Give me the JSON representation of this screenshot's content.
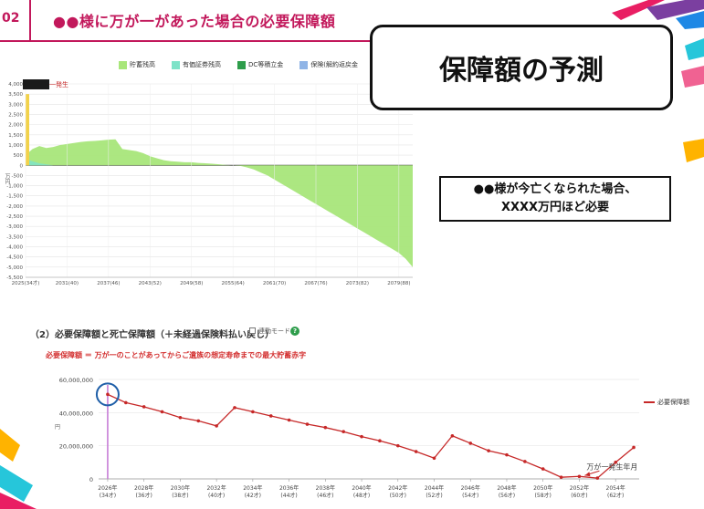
{
  "header": {
    "slide_number": "02",
    "title": "●●様に万が一があった場合の必要保障額"
  },
  "callouts": {
    "prediction": "保障額の予測",
    "conclusion_line1": "●●様が今亡くなられた場合、",
    "conclusion_line2": "XXXX万円ほど必要"
  },
  "colors": {
    "brand": "#c2185b",
    "savings": "#a8e67a",
    "securities": "#7ee3c8",
    "dc": "#2e9d4b",
    "insurance": "#8fb4e6",
    "required_line": "#c62828",
    "highlight_circle": "#1f5fa8"
  },
  "top_chart": {
    "legend": [
      "貯蓄残高",
      "有価証券残高",
      "DC等積立金",
      "保険(解約返戻金"
    ],
    "alert_label": "万が一発生",
    "y_unit": "万円",
    "y_ticks": [
      "4,000",
      "3,500",
      "3,000",
      "2,500",
      "2,000",
      "1,500",
      "1,000",
      "500",
      "0",
      "-500",
      "-1,000",
      "-1,500",
      "-2,000",
      "-2,500",
      "-3,000",
      "-3,500",
      "-4,000",
      "-4,500",
      "-5,000",
      "-5,500"
    ],
    "x_ticks": [
      "2025(34才)",
      "2031(40)",
      "2037(46)",
      "2043(52)",
      "2049(58)",
      "2055(64)",
      "2061(70)",
      "2067(76)",
      "2073(82)",
      "2079(88)"
    ]
  },
  "section": {
    "heading": "（2）必要保障額と死亡保障額（＋未経過保険料払い戻し）",
    "sync_mode": "連動モード",
    "help_icon": "?",
    "definition": "必要保障額 ＝ 万が一のことがあってからご遺族の想定寿命までの最大貯蓄赤字"
  },
  "bottom_chart": {
    "y_unit": "円",
    "legend": "必要保障額",
    "event_label": "万が一発生年月",
    "y_ticks": [
      "60,000,000",
      "40,000,000",
      "20,000,000",
      "0"
    ],
    "x_years": [
      "2026年",
      "2028年",
      "2030年",
      "2032年",
      "2034年",
      "2036年",
      "2038年",
      "2040年",
      "2042年",
      "2044年",
      "2046年",
      "2048年",
      "2050年",
      "2052年",
      "2054年"
    ],
    "x_ages": [
      "(34才)",
      "(36才)",
      "(38才)",
      "(40才)",
      "(42才)",
      "(44才)",
      "(46才)",
      "(48才)",
      "(50才)",
      "(52才)",
      "(54才)",
      "(56才)",
      "(58才)",
      "(60才)",
      "(62才)"
    ]
  },
  "chart_data": [
    {
      "type": "area",
      "legend": [
        "貯蓄残高",
        "有価証券残高",
        "DC等積立金",
        "保険(解約返戻金"
      ],
      "x": [
        2025,
        2026,
        2027,
        2028,
        2029,
        2030,
        2031,
        2032,
        2033,
        2034,
        2035,
        2036,
        2037,
        2038,
        2039,
        2040,
        2041,
        2042,
        2043,
        2044,
        2045,
        2046,
        2047,
        2048,
        2049,
        2050,
        2051,
        2052,
        2053,
        2054,
        2055,
        2056,
        2057,
        2058,
        2059,
        2060,
        2061,
        2062,
        2063,
        2064,
        2065,
        2066,
        2067,
        2068,
        2069,
        2070,
        2071,
        2072,
        2073,
        2074,
        2075,
        2076,
        2077,
        2078,
        2079,
        2080,
        2081
      ],
      "series": [
        {
          "name": "貯蓄残高",
          "values": [
            500,
            800,
            950,
            850,
            900,
            1000,
            1050,
            1100,
            1150,
            1180,
            1200,
            1230,
            1260,
            1280,
            800,
            750,
            700,
            600,
            450,
            350,
            250,
            200,
            180,
            150,
            150,
            120,
            100,
            80,
            50,
            20,
            0,
            -20,
            -100,
            -200,
            -350,
            -500,
            -700,
            -900,
            -1100,
            -1300,
            -1500,
            -1700,
            -1900,
            -2100,
            -2300,
            -2500,
            -2700,
            -2900,
            -3100,
            -3300,
            -3500,
            -3700,
            -3900,
            -4100,
            -4300,
            -4600,
            -5000
          ]
        },
        {
          "name": "有価証券残高",
          "values": [
            300,
            200,
            100,
            50,
            0,
            0,
            0,
            0,
            0,
            0,
            0,
            0,
            0,
            0,
            0,
            0,
            0,
            0,
            0,
            0,
            0,
            0,
            0,
            0,
            0,
            0,
            0,
            0,
            0,
            0,
            0,
            0,
            0,
            0,
            0,
            0,
            0,
            0,
            0,
            0,
            0,
            0,
            0,
            0,
            0,
            0,
            0,
            0,
            0,
            0,
            0,
            0,
            0,
            0,
            0,
            0,
            0
          ]
        }
      ],
      "y_unit": "万円",
      "ylim": [
        -5500,
        4000
      ],
      "x_tick_labels": [
        "2025(34才)",
        "2031(40)",
        "2037(46)",
        "2043(52)",
        "2049(58)",
        "2055(64)",
        "2061(70)",
        "2067(76)",
        "2073(82)",
        "2079(88)"
      ],
      "grid": true
    },
    {
      "type": "line",
      "x": [
        2026,
        2027,
        2028,
        2029,
        2030,
        2031,
        2032,
        2033,
        2034,
        2035,
        2036,
        2037,
        2038,
        2039,
        2040,
        2041,
        2042,
        2043,
        2044,
        2045,
        2046,
        2047,
        2048,
        2049,
        2050,
        2051,
        2052,
        2053,
        2054,
        2055
      ],
      "series": [
        {
          "name": "必要保障額",
          "values": [
            51000000,
            46000000,
            43500000,
            40500000,
            37000000,
            35000000,
            32000000,
            43000000,
            40500000,
            38000000,
            35500000,
            33000000,
            31000000,
            28500000,
            25500000,
            23000000,
            20000000,
            16500000,
            12500000,
            26000000,
            21500000,
            17000000,
            14500000,
            10500000,
            6000000,
            1000000,
            1500000,
            500000,
            10000000,
            19000000
          ]
        }
      ],
      "y_unit": "円",
      "ylim": [
        0,
        60000000
      ],
      "y_tick_labels": [
        "60,000,000",
        "40,000,000",
        "20,000,000",
        "0"
      ],
      "legend_position": "right",
      "annotation": "万が一発生年月",
      "grid": true
    }
  ]
}
